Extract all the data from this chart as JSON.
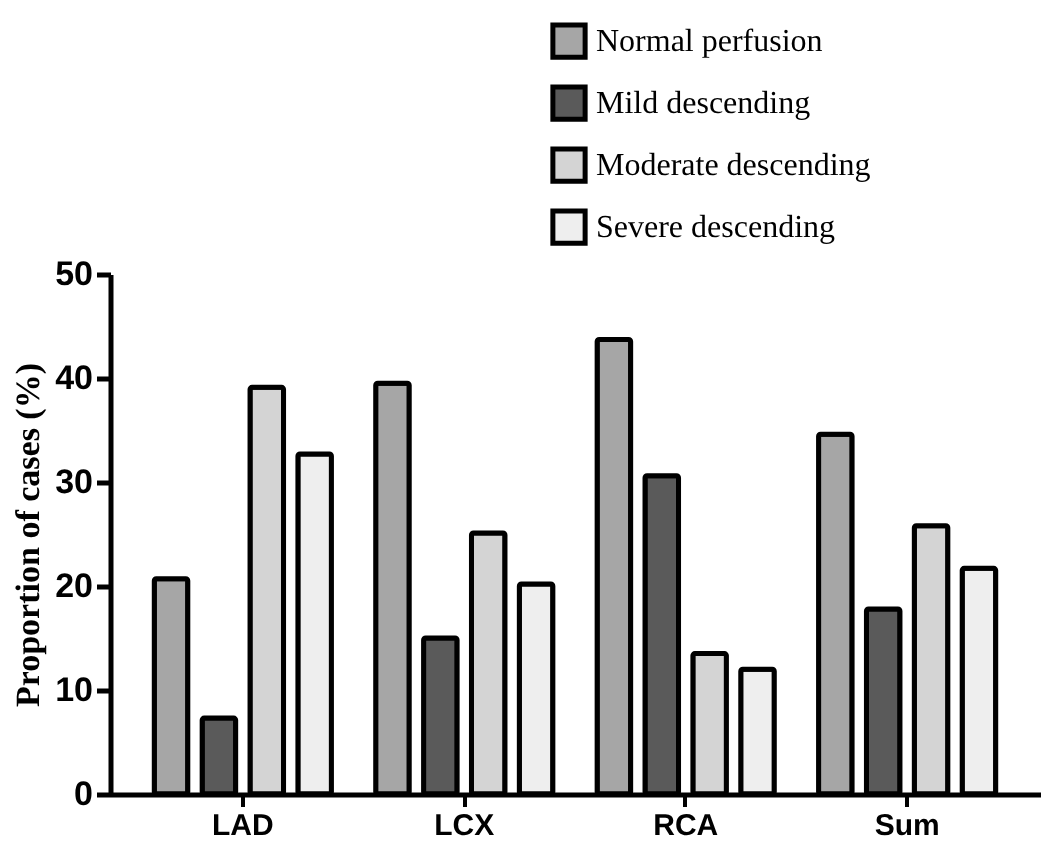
{
  "chart_data": {
    "type": "bar",
    "ylabel": "Proportion of cases (%)",
    "categories": [
      "LAD",
      "LCX",
      "RCA",
      "Sum"
    ],
    "series": [
      {
        "name": "Normal perfusion",
        "color": "#a6a6a6",
        "values": [
          20.7,
          39.5,
          43.7,
          34.6
        ]
      },
      {
        "name": "Mild descending",
        "color": "#5a5a5a",
        "values": [
          7.3,
          15.0,
          30.6,
          17.8
        ]
      },
      {
        "name": "Moderate descending",
        "color": "#d4d4d4",
        "values": [
          39.1,
          25.1,
          13.5,
          25.8
        ]
      },
      {
        "name": "Severe descending",
        "color": "#eeeeee",
        "values": [
          32.7,
          20.2,
          12.0,
          21.7
        ]
      }
    ],
    "ylim": [
      0,
      50
    ],
    "yticks": [
      0,
      10,
      20,
      30,
      40,
      50
    ],
    "grid": false,
    "legend": "top right"
  }
}
